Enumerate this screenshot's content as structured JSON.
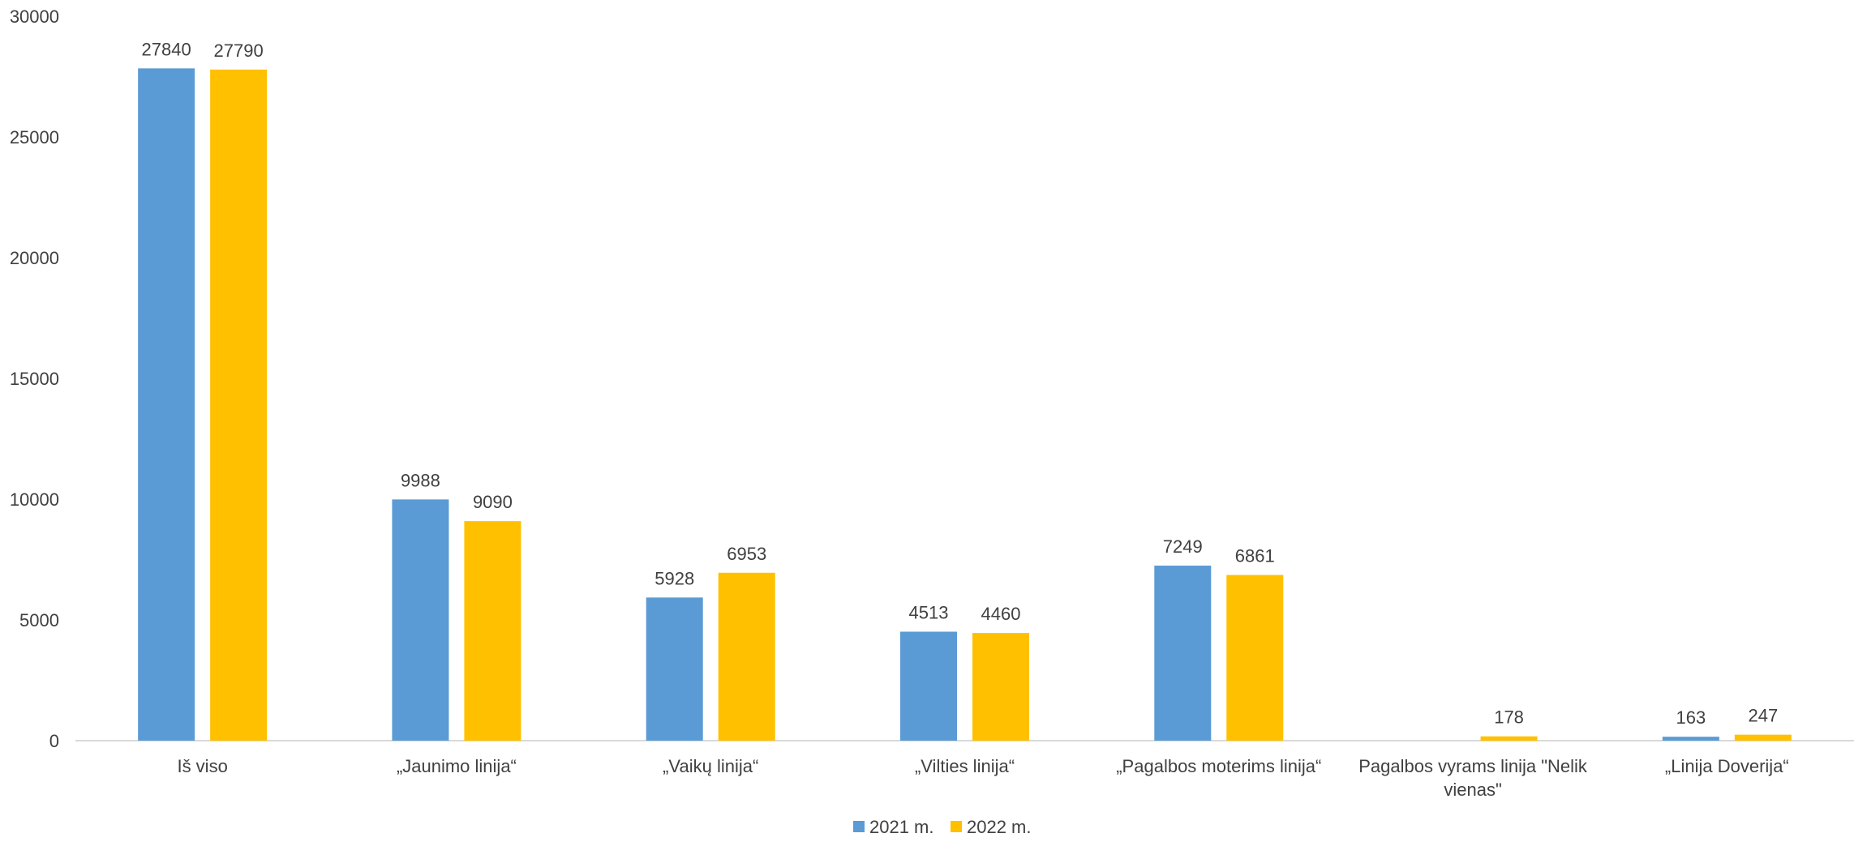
{
  "chart_data": {
    "type": "bar",
    "title": "",
    "xlabel": "",
    "ylabel": "",
    "ylim": [
      0,
      30000
    ],
    "yticks": [
      0,
      5000,
      10000,
      15000,
      20000,
      25000,
      30000
    ],
    "grid": false,
    "legend_position": "bottom",
    "categories": [
      "Iš viso",
      "„Jaunimo linija“",
      "„Vaikų linija“",
      "„Vilties linija“",
      "„Pagalbos moterims linija“",
      "Pagalbos vyrams linija \"Nelik vienas\"",
      "„Linija Doverija“"
    ],
    "category_lines": [
      [
        "Iš viso"
      ],
      [
        "„Jaunimo linija“"
      ],
      [
        "„Vaikų linija“"
      ],
      [
        "„Vilties linija“"
      ],
      [
        "„Pagalbos moterims linija“"
      ],
      [
        "Pagalbos vyrams linija \"Nelik",
        "vienas\""
      ],
      [
        "„Linija Doverija“"
      ]
    ],
    "series": [
      {
        "name": "2021 m.",
        "color": "#5b9bd5",
        "values": [
          27840,
          9988,
          5928,
          4513,
          7249,
          null,
          163
        ]
      },
      {
        "name": "2022 m.",
        "color": "#ffc000",
        "values": [
          27790,
          9090,
          6953,
          4460,
          6861,
          178,
          247
        ]
      }
    ]
  }
}
